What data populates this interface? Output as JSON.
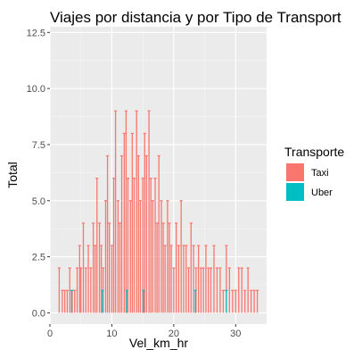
{
  "chart_data": {
    "type": "bar",
    "title": "Viajes por distancia y por Tipo de Transport",
    "xlabel": "Vel_km_hr",
    "ylabel": "Total",
    "xlim": [
      0,
      35
    ],
    "ylim": [
      -0.5,
      12.75
    ],
    "x_ticks": [
      0,
      10,
      20,
      30
    ],
    "x_tick_labels": [
      "0",
      "10",
      "20",
      "30"
    ],
    "y_ticks": [
      0,
      2.5,
      5,
      7.5,
      10,
      12.5
    ],
    "y_tick_labels": [
      "0.0",
      "2.5",
      "5.0",
      "7.5",
      "10.0",
      "12.5"
    ],
    "grid": true,
    "legend": {
      "title": "Transporte",
      "position": "right",
      "entries": [
        {
          "name": "Taxi",
          "color": "#F8766D"
        },
        {
          "name": "Uber",
          "color": "#00BFC4"
        }
      ]
    },
    "series": [
      {
        "name": "Taxi",
        "color": "#F8766D",
        "x": [
          1.5,
          2.0,
          2.4,
          2.8,
          3.2,
          3.6,
          4.0,
          4.4,
          4.8,
          5.0,
          5.4,
          5.8,
          6.2,
          6.6,
          7.0,
          7.3,
          7.6,
          8.0,
          8.3,
          8.6,
          9.0,
          9.3,
          9.6,
          10.0,
          10.3,
          10.6,
          11.0,
          11.3,
          11.6,
          12.0,
          12.3,
          12.6,
          13.0,
          13.3,
          13.6,
          14.0,
          14.3,
          14.6,
          15.0,
          15.3,
          15.6,
          16.0,
          16.3,
          16.6,
          17.0,
          17.3,
          17.6,
          18.0,
          18.3,
          18.6,
          19.0,
          19.3,
          19.6,
          20.0,
          20.4,
          20.8,
          21.2,
          21.6,
          22.0,
          22.4,
          22.8,
          23.2,
          23.6,
          24.0,
          24.4,
          24.8,
          25.2,
          25.6,
          26.0,
          26.5,
          27.0,
          27.5,
          28.0,
          28.5,
          29.0,
          29.5,
          30.0,
          30.5,
          31.0,
          31.5,
          32.0,
          32.5,
          33.0,
          33.5
        ],
        "values": [
          2,
          1,
          1,
          1,
          2,
          1,
          1,
          2,
          3,
          2,
          4,
          2,
          3,
          2,
          4,
          3,
          6,
          4,
          3,
          2,
          5,
          7,
          4,
          3,
          6,
          9,
          5,
          4,
          7,
          8,
          9,
          6,
          5,
          8,
          6,
          9,
          7,
          5,
          6,
          8,
          7,
          9,
          6,
          5,
          6,
          4,
          7,
          5,
          4,
          3,
          5,
          4,
          3,
          2,
          4,
          3,
          5,
          3,
          3,
          2,
          4,
          3,
          2,
          3,
          2,
          2,
          3,
          2,
          2,
          3,
          2,
          2,
          1,
          3,
          2,
          1,
          1,
          2,
          2,
          1,
          2,
          1,
          1,
          1
        ]
      },
      {
        "name": "Uber",
        "color": "#00BFC4",
        "x": [
          3.5,
          8.5,
          12.4,
          15.1,
          23.5,
          28.5
        ],
        "values": [
          1,
          1,
          1,
          1,
          1,
          1
        ]
      }
    ]
  }
}
